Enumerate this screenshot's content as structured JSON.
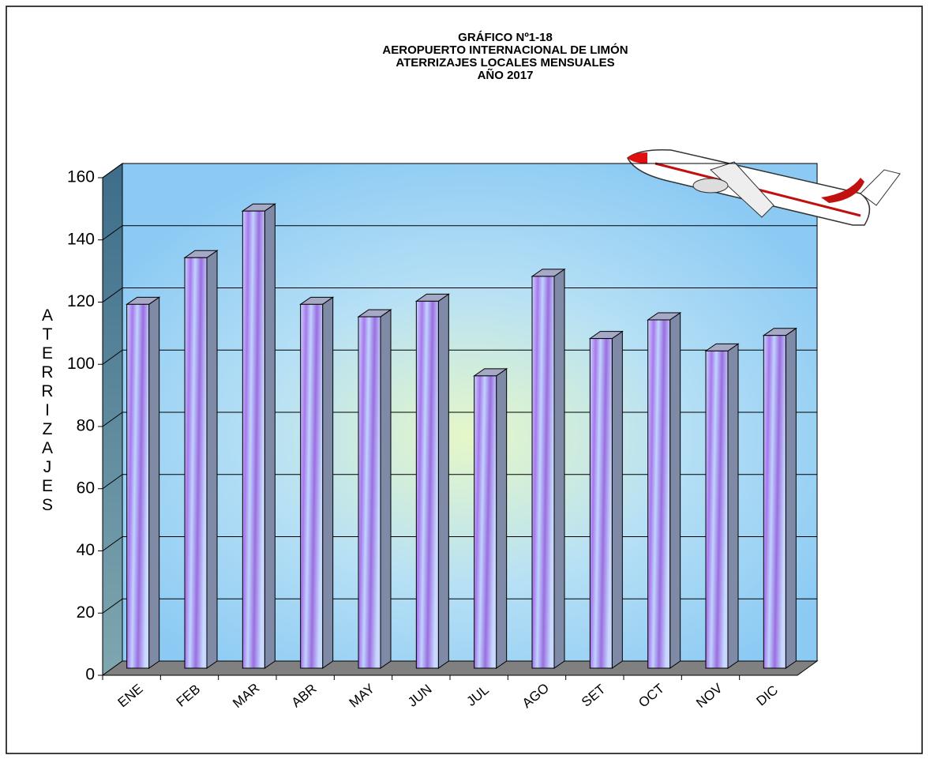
{
  "chart_data": {
    "type": "bar3d",
    "title_lines": [
      "GRÁFICO Nº1-18",
      "AEROPUERTO  INTERNACIONAL  DE LIMÓN",
      "ATERRIZAJES LOCALES MENSUALES",
      "AÑO 2017"
    ],
    "y_label": "ATERRIZAJES",
    "categories": [
      "ENE",
      "FEB",
      "MAR",
      "ABR",
      "MAY",
      "JUN",
      "JUL",
      "AGO",
      "SET",
      "OCT",
      "NOV",
      "DIC"
    ],
    "values": [
      117,
      132,
      147,
      117,
      113,
      118,
      94,
      126,
      106,
      112,
      102,
      107
    ],
    "color": "#b08cf0",
    "ylim": [
      0,
      160
    ],
    "yticks": [
      0,
      20,
      40,
      60,
      80,
      100,
      120,
      140,
      160
    ],
    "grid": true
  }
}
